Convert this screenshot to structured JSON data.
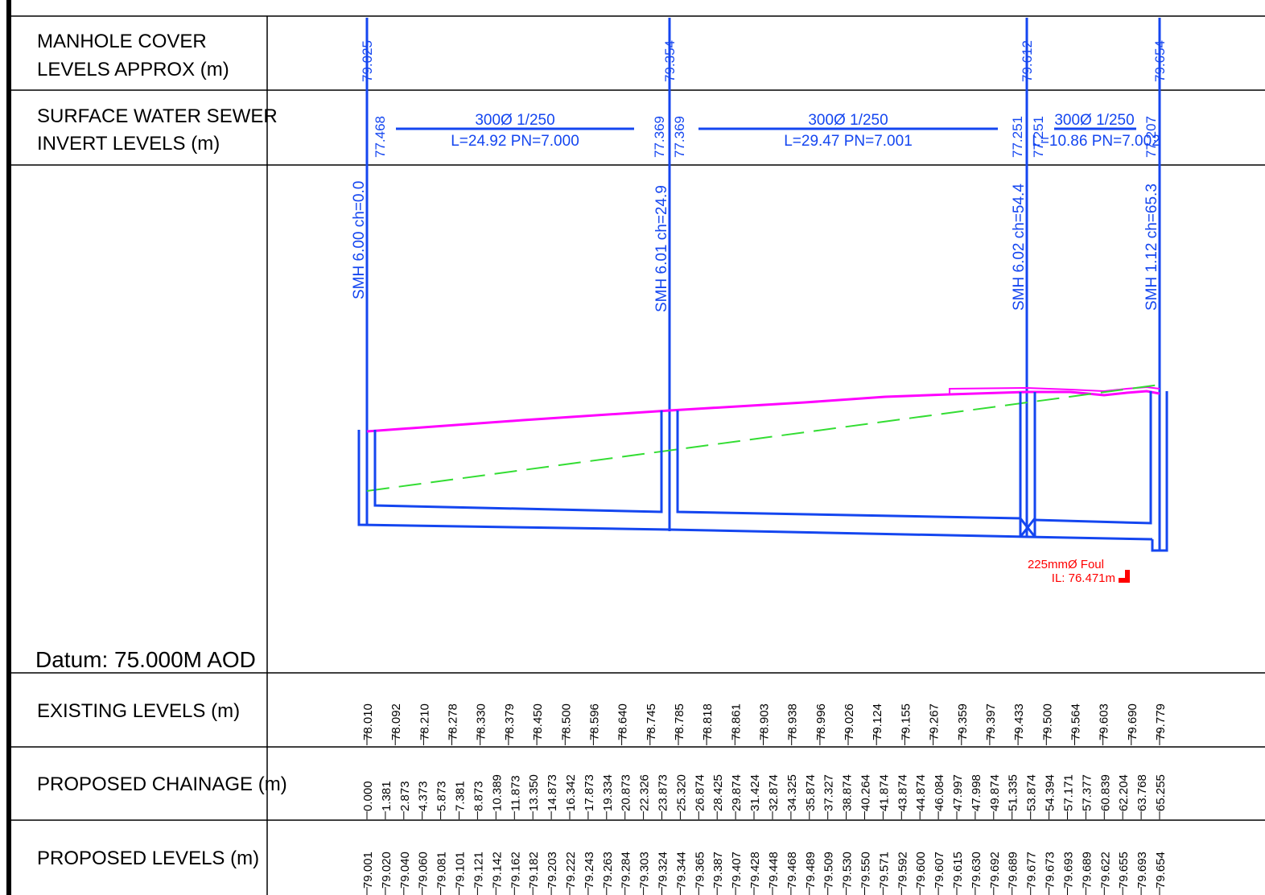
{
  "rows": {
    "manhole_cover": [
      "MANHOLE COVER",
      "LEVELS APPROX (m)"
    ],
    "invert": [
      "SURFACE WATER SEWER",
      "INVERT LEVELS (m)"
    ],
    "existing": "EXISTING LEVELS (m)",
    "chainage": "PROPOSED CHAINAGE (m)",
    "proposed": "PROPOSED LEVELS (m)"
  },
  "datum": "Datum: 75.000M AOD",
  "manholes": [
    {
      "name": "SMH 6.00 ch=0.0",
      "cover": "79.025",
      "invert": [
        "77.468"
      ]
    },
    {
      "name": "SMH 6.01 ch=24.9",
      "cover": "79.354",
      "invert": [
        "77.369",
        "77.369"
      ]
    },
    {
      "name": "SMH 6.02 ch=54.4",
      "cover": "79.612",
      "invert": [
        "77.251",
        "77.251"
      ]
    },
    {
      "name": "SMH 1.12 ch=65.3",
      "cover": "79.654",
      "invert": [
        "77.207"
      ]
    }
  ],
  "pipes": [
    {
      "top": "300Ø  1/250",
      "bottom": "L=24.92  PN=7.000"
    },
    {
      "top": "300Ø  1/250",
      "bottom": "L=29.47  PN=7.001"
    },
    {
      "top": "300Ø  1/250",
      "bottom": "L=10.86  PN=7.002"
    }
  ],
  "foul_note": [
    "225mmØ Foul",
    "IL: 76.471m"
  ],
  "existing_levels": [
    "78.010",
    "78.092",
    "78.210",
    "78.278",
    "78.330",
    "78.379",
    "78.450",
    "78.500",
    "78.596",
    "78.640",
    "78.745",
    "78.785",
    "78.818",
    "78.861",
    "78.903",
    "78.938",
    "78.996",
    "79.026",
    "79.124",
    "79.155",
    "79.267",
    "79.359",
    "79.397",
    "79.433",
    "79.500",
    "79.564",
    "79.603",
    "79.690",
    "79.779"
  ],
  "proposed_chainage": [
    "0.000",
    "1.381",
    "2.873",
    "4.373",
    "5.873",
    "7.381",
    "8.873",
    "10.389",
    "11.873",
    "13.350",
    "14.873",
    "16.342",
    "17.873",
    "19.334",
    "20.873",
    "22.326",
    "23.873",
    "25.320",
    "26.874",
    "28.425",
    "29.874",
    "31.424",
    "32.874",
    "34.325",
    "35.874",
    "37.327",
    "38.874",
    "40.264",
    "41.874",
    "43.874",
    "44.874",
    "46.084",
    "47.997",
    "47.998",
    "49.874",
    "51.335",
    "53.874",
    "54.394",
    "57.171",
    "57.377",
    "60.839",
    "62.204",
    "63.768",
    "65.255"
  ],
  "proposed_levels": [
    "79.001",
    "79.020",
    "79.040",
    "79.060",
    "79.081",
    "79.101",
    "79.121",
    "79.142",
    "79.162",
    "79.182",
    "79.203",
    "79.222",
    "79.243",
    "79.263",
    "79.284",
    "79.303",
    "79.324",
    "79.344",
    "79.365",
    "79.387",
    "79.407",
    "79.428",
    "79.448",
    "79.468",
    "79.489",
    "79.509",
    "79.530",
    "79.550",
    "79.571",
    "79.592",
    "79.600",
    "79.607",
    "79.615",
    "79.630",
    "79.692",
    "79.689",
    "79.677",
    "79.673",
    "79.693",
    "79.689",
    "79.622",
    "79.655",
    "79.693",
    "79.654"
  ],
  "colors": {
    "pipe": "#1446f0",
    "existing_ground": "#ff00ff",
    "proposed_ground": "#33dd33",
    "foul": "#ff0000",
    "grid": "#000000"
  }
}
